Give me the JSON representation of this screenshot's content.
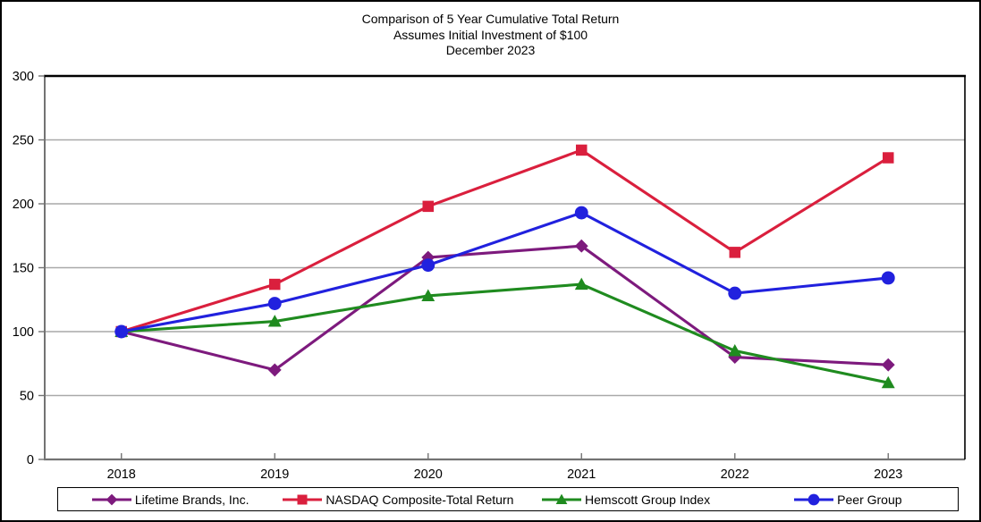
{
  "chart_data": {
    "type": "line",
    "title": "Comparison of 5 Year Cumulative Total Return",
    "subtitle": "Assumes Initial Investment of $100",
    "date_label": "December 2023",
    "categories": [
      "2018",
      "2019",
      "2020",
      "2021",
      "2022",
      "2023"
    ],
    "series": [
      {
        "name": "Lifetime Brands, Inc.",
        "marker": "diamond",
        "color": "#7D1A7D",
        "values": [
          100,
          70,
          158,
          167,
          80,
          74
        ]
      },
      {
        "name": "NASDAQ Composite-Total Return",
        "marker": "square",
        "color": "#DA1F3D",
        "values": [
          100,
          137,
          198,
          242,
          162,
          236
        ]
      },
      {
        "name": "Hemscott Group Index",
        "marker": "triangle",
        "color": "#1F8B1F",
        "values": [
          100,
          108,
          128,
          137,
          85,
          60
        ]
      },
      {
        "name": "Peer Group",
        "marker": "circle",
        "color": "#2121DE",
        "values": [
          100,
          122,
          152,
          193,
          130,
          142
        ]
      }
    ],
    "ylim": [
      0,
      300
    ],
    "yticks": [
      0,
      50,
      100,
      150,
      200,
      250,
      300
    ],
    "grid": true,
    "legend_position": "bottom",
    "colors": {
      "axis_line": "#737373",
      "plot_border": "#000000",
      "gridline": "#A9A9A9",
      "text": "#000000",
      "background": "#FFFFFF"
    }
  }
}
